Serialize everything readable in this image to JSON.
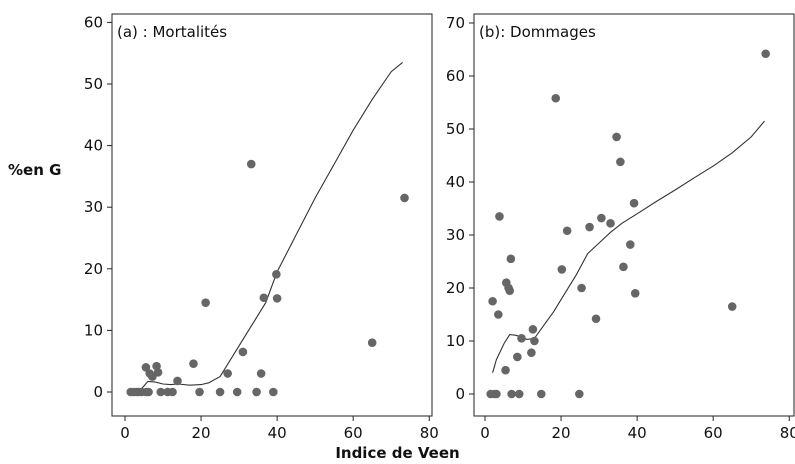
{
  "figure": {
    "ylabel": "%en G",
    "xlabel": "Indice de Veen"
  },
  "chart_data": [
    {
      "type": "scatter",
      "title": "(a) : Mortalités",
      "xlim": [
        0,
        80
      ],
      "ylim": [
        0,
        60
      ],
      "xticks": [
        0,
        20,
        40,
        60,
        80
      ],
      "yticks": [
        0,
        10,
        20,
        30,
        40,
        50,
        60
      ],
      "point_color": "#666666",
      "points": [
        [
          1.5,
          0
        ],
        [
          2.2,
          0
        ],
        [
          3.0,
          0
        ],
        [
          3.6,
          0
        ],
        [
          4.4,
          0
        ],
        [
          5.6,
          0
        ],
        [
          6.2,
          0
        ],
        [
          5.5,
          4
        ],
        [
          6.5,
          3
        ],
        [
          7.2,
          2.5
        ],
        [
          8.3,
          4.2
        ],
        [
          8.7,
          3.2
        ],
        [
          9.4,
          0
        ],
        [
          11.2,
          0
        ],
        [
          12.5,
          0
        ],
        [
          13.8,
          1.8
        ],
        [
          18.0,
          4.6
        ],
        [
          19.6,
          0
        ],
        [
          21.2,
          14.5
        ],
        [
          25.0,
          0
        ],
        [
          27.0,
          3.0
        ],
        [
          29.5,
          0
        ],
        [
          31.0,
          6.5
        ],
        [
          33.2,
          37
        ],
        [
          34.6,
          0
        ],
        [
          35.8,
          3.0
        ],
        [
          36.5,
          15.3
        ],
        [
          39.0,
          0
        ],
        [
          39.8,
          19.1
        ],
        [
          40.0,
          15.2
        ],
        [
          65.0,
          8.0
        ],
        [
          73.5,
          31.5
        ]
      ],
      "trend": [
        [
          2,
          0.1
        ],
        [
          4,
          0.3
        ],
        [
          6,
          1.7
        ],
        [
          8,
          1.6
        ],
        [
          10,
          1.3
        ],
        [
          12,
          1.2
        ],
        [
          14,
          1.3
        ],
        [
          17,
          1.1
        ],
        [
          20,
          1.2
        ],
        [
          22,
          1.5
        ],
        [
          25,
          2.5
        ],
        [
          28,
          5.5
        ],
        [
          31,
          8.5
        ],
        [
          34,
          11.5
        ],
        [
          37,
          14.5
        ],
        [
          40,
          19.5
        ],
        [
          45,
          25.5
        ],
        [
          50,
          31.5
        ],
        [
          55,
          37.0
        ],
        [
          60,
          42.5
        ],
        [
          65,
          47.5
        ],
        [
          70,
          52.0
        ],
        [
          73,
          53.5
        ]
      ]
    },
    {
      "type": "scatter",
      "title": "(b): Dommages",
      "xlim": [
        0,
        80
      ],
      "ylim": [
        0,
        70
      ],
      "xticks": [
        0,
        20,
        40,
        60,
        80
      ],
      "yticks": [
        0,
        10,
        20,
        30,
        40,
        50,
        60,
        70
      ],
      "point_color": "#666666",
      "points": [
        [
          1.5,
          0
        ],
        [
          2.0,
          17.5
        ],
        [
          2.5,
          0
        ],
        [
          3.0,
          0
        ],
        [
          3.5,
          15
        ],
        [
          3.8,
          33.5
        ],
        [
          5.4,
          4.5
        ],
        [
          5.6,
          21
        ],
        [
          6.2,
          20
        ],
        [
          6.5,
          19.5
        ],
        [
          6.8,
          25.5
        ],
        [
          7.0,
          0
        ],
        [
          8.5,
          7
        ],
        [
          9.0,
          0
        ],
        [
          9.6,
          10.5
        ],
        [
          12.2,
          7.8
        ],
        [
          12.6,
          12.2
        ],
        [
          13.0,
          10
        ],
        [
          14.8,
          0
        ],
        [
          18.6,
          55.8
        ],
        [
          20.2,
          23.5
        ],
        [
          21.6,
          30.8
        ],
        [
          24.8,
          0
        ],
        [
          25.4,
          20
        ],
        [
          27.5,
          31.5
        ],
        [
          29.2,
          14.2
        ],
        [
          30.6,
          33.2
        ],
        [
          33.0,
          32.2
        ],
        [
          34.6,
          48.5
        ],
        [
          35.6,
          43.8
        ],
        [
          36.4,
          24.0
        ],
        [
          38.2,
          28.2
        ],
        [
          39.2,
          36
        ],
        [
          39.5,
          19.0
        ],
        [
          65.0,
          16.5
        ],
        [
          73.8,
          64.2
        ]
      ],
      "trend": [
        [
          2,
          4
        ],
        [
          3,
          6.5
        ],
        [
          5,
          9.5
        ],
        [
          6.5,
          11.2
        ],
        [
          8,
          11.1
        ],
        [
          9.5,
          10.8
        ],
        [
          11,
          10.3
        ],
        [
          13,
          10.5
        ],
        [
          15,
          12.5
        ],
        [
          18,
          15.5
        ],
        [
          21,
          19
        ],
        [
          24,
          22.5
        ],
        [
          27,
          26.5
        ],
        [
          30,
          28.5
        ],
        [
          33,
          30.5
        ],
        [
          36,
          32.2
        ],
        [
          40,
          34
        ],
        [
          45,
          36.3
        ],
        [
          50,
          38.5
        ],
        [
          55,
          40.8
        ],
        [
          60,
          43
        ],
        [
          65,
          45.5
        ],
        [
          70,
          48.5
        ],
        [
          73.5,
          51.5
        ]
      ]
    }
  ]
}
